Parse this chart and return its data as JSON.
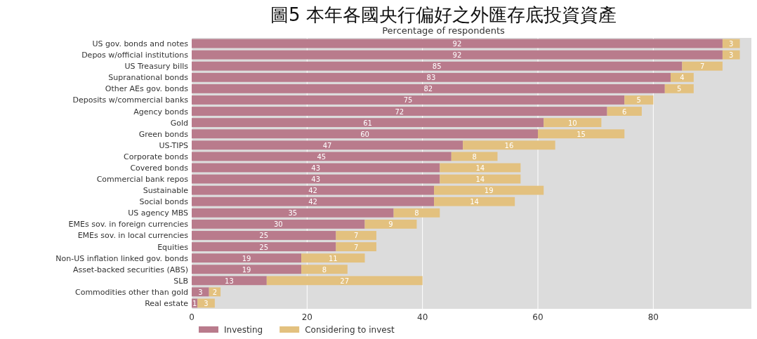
{
  "chart_data": {
    "type": "bar",
    "title": "圖5 本年各國央行偏好之外匯存底投資資產",
    "subtitle": "Percentage of respondents",
    "categories": [
      "US gov. bonds and notes",
      "Depos w/official institutions",
      "US Treasury bills",
      "Supranational bonds",
      "Other AEs gov. bonds",
      "Deposits w/commercial banks",
      "Agency bonds",
      "Gold",
      "Green bonds",
      "US-TIPS",
      "Corporate bonds",
      "Covered bonds",
      "Commercial bank repos",
      "Sustainable",
      "Social bonds",
      "US agency MBS",
      "EMEs sov. in foreign currencies",
      "EMEs sov. in local currencies",
      "Equities",
      "Non-US inflation linked gov. bonds",
      "Asset-backed securities (ABS)",
      "SLB",
      "Commodities other than gold",
      "Real estate"
    ],
    "series": [
      {
        "name": "Investing",
        "color": "#b97b8c",
        "values": [
          92,
          92,
          85,
          83,
          82,
          75,
          72,
          61,
          60,
          47,
          45,
          43,
          43,
          42,
          42,
          35,
          30,
          25,
          25,
          19,
          19,
          13,
          3,
          1
        ]
      },
      {
        "name": "Considering to invest",
        "color": "#e3c17f",
        "values": [
          3,
          3,
          7,
          4,
          5,
          5,
          6,
          10,
          15,
          16,
          8,
          14,
          14,
          19,
          14,
          8,
          9,
          7,
          7,
          11,
          8,
          27,
          2,
          3
        ]
      }
    ],
    "stacked": true,
    "orientation": "horizontal",
    "xlim": [
      0,
      97
    ],
    "xticks": [
      0,
      20,
      40,
      60,
      80
    ],
    "data_labels": true,
    "grid": "x",
    "legend": "bottom left"
  }
}
